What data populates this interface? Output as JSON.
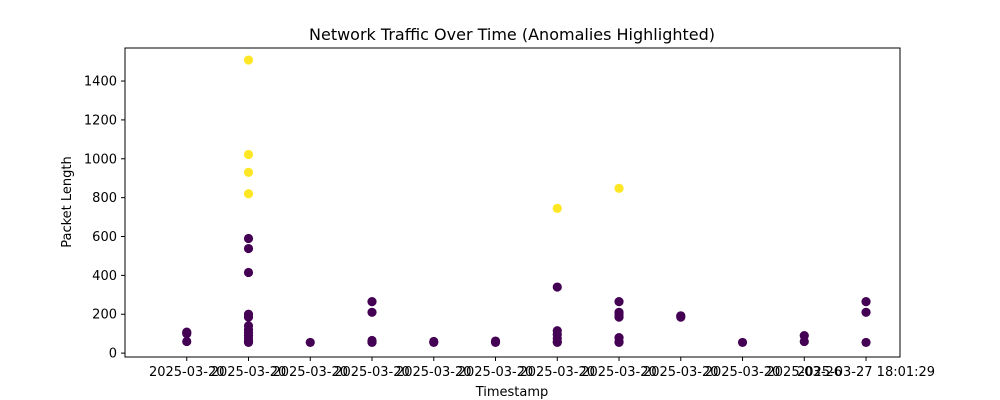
{
  "chart_data": {
    "type": "scatter",
    "title": "Network Traffic Over Time (Anomalies Highlighted)",
    "xlabel": "Timestamp",
    "ylabel": "Packet Length",
    "ylim": [
      -20,
      1570
    ],
    "xlim": [
      -1.0,
      11.55
    ],
    "y_ticks": [
      0,
      200,
      400,
      600,
      800,
      1000,
      1200,
      1400
    ],
    "x_tick_positions": [
      0,
      1,
      2,
      3,
      4,
      5,
      6,
      7,
      8,
      9,
      10,
      11
    ],
    "x_tick_labels": [
      "2025-03-20",
      "2025-03-20",
      "2025-03-20",
      "2025-03-20",
      "2025-03-20",
      "2025-03-20",
      "2025-03-20",
      "2025-03-20",
      "2025-03-20",
      "2025-03-20",
      "2025-03-26",
      "2025-03-27 18:01:29"
    ],
    "colors": {
      "normal": "#440154",
      "anomaly": "#fde725"
    },
    "series": [
      {
        "name": "",
        "kind": "normal",
        "points": [
          [
            0,
            60
          ],
          [
            0,
            100
          ],
          [
            0,
            108
          ],
          [
            1,
            55
          ],
          [
            1,
            60
          ],
          [
            1,
            62
          ],
          [
            1,
            75
          ],
          [
            1,
            90
          ],
          [
            1,
            105
          ],
          [
            1,
            120
          ],
          [
            1,
            140
          ],
          [
            1,
            185
          ],
          [
            1,
            200
          ],
          [
            1,
            415
          ],
          [
            1,
            538
          ],
          [
            1,
            590
          ],
          [
            2,
            55
          ],
          [
            3,
            55
          ],
          [
            3,
            60
          ],
          [
            3,
            65
          ],
          [
            3,
            210
          ],
          [
            3,
            265
          ],
          [
            4,
            55
          ],
          [
            4,
            60
          ],
          [
            5,
            55
          ],
          [
            5,
            62
          ],
          [
            6,
            55
          ],
          [
            6,
            60
          ],
          [
            6,
            75
          ],
          [
            6,
            95
          ],
          [
            6,
            115
          ],
          [
            6,
            340
          ],
          [
            7,
            55
          ],
          [
            7,
            60
          ],
          [
            7,
            80
          ],
          [
            7,
            185
          ],
          [
            7,
            200
          ],
          [
            7,
            210
          ],
          [
            7,
            265
          ],
          [
            8,
            185
          ],
          [
            8,
            192
          ],
          [
            9,
            55
          ],
          [
            10,
            60
          ],
          [
            10,
            90
          ],
          [
            11,
            55
          ],
          [
            11,
            210
          ],
          [
            11,
            265
          ]
        ]
      },
      {
        "name": "",
        "kind": "anomaly",
        "points": [
          [
            1,
            820
          ],
          [
            1,
            930
          ],
          [
            1,
            1022
          ],
          [
            1,
            1508
          ],
          [
            6,
            745
          ],
          [
            7,
            848
          ]
        ]
      }
    ]
  }
}
